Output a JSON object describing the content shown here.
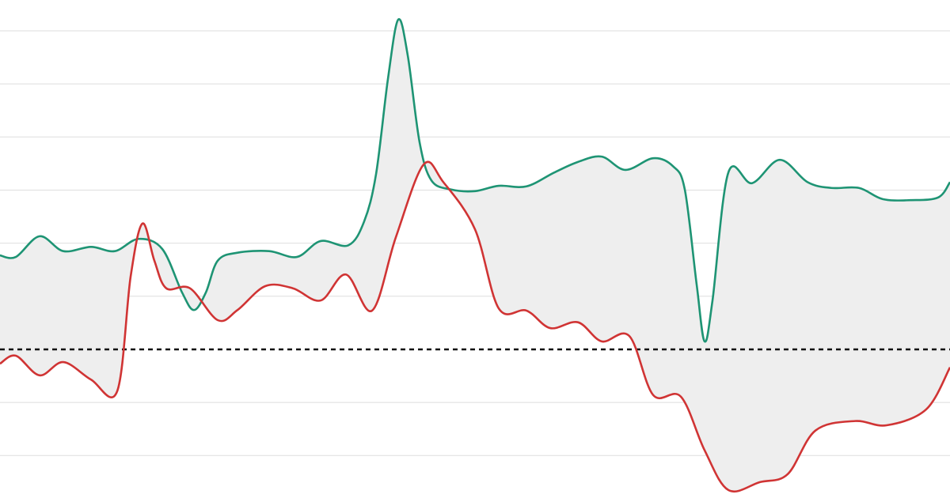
{
  "chart_data": {
    "type": "line",
    "xlim": [
      0,
      120
    ],
    "ylim": [
      -2.8,
      6.58
    ],
    "yticks": [
      -2,
      -1,
      1,
      2,
      3,
      4,
      5,
      6
    ],
    "grid": true,
    "hline": 0,
    "fill_between": true,
    "fill_color": "#eeeeee",
    "series": [
      {
        "color": "#1e9474",
        "x": [
          0,
          2,
          5,
          8,
          11.5,
          14.5,
          17.5,
          20.5,
          23,
          24.5,
          26,
          27.5,
          30,
          34,
          37.5,
          40.5,
          44,
          46,
          47.5,
          49,
          50.3,
          51.5,
          53,
          54.5,
          57,
          60,
          63,
          66.5,
          70,
          73,
          76,
          79,
          82.5,
          85,
          86.5,
          88,
          89,
          90,
          92,
          95,
          98.5,
          102,
          105,
          108.5,
          111.5,
          115,
          118.5,
          120
        ],
        "values": [
          1.77,
          1.74,
          2.13,
          1.85,
          1.93,
          1.85,
          2.08,
          1.89,
          1.07,
          0.74,
          1.07,
          1.67,
          1.82,
          1.85,
          1.74,
          2.04,
          1.96,
          2.41,
          3.3,
          5.09,
          6.21,
          5.54,
          3.9,
          3.18,
          3.01,
          2.98,
          3.08,
          3.07,
          3.33,
          3.53,
          3.63,
          3.38,
          3.6,
          3.45,
          3.01,
          1.22,
          0.15,
          0.92,
          3.33,
          3.13,
          3.57,
          3.15,
          3.04,
          3.04,
          2.83,
          2.81,
          2.86,
          3.15
        ]
      },
      {
        "color": "#d03434",
        "x": [
          0,
          2,
          5,
          8,
          11.5,
          14.8,
          16.5,
          18,
          19.5,
          21,
          24,
          27.5,
          30,
          33.5,
          37,
          40.5,
          43.7,
          47,
          50,
          53.5,
          56,
          60,
          63,
          66.5,
          69.5,
          73,
          76,
          79.5,
          82.5,
          86,
          89,
          92,
          96,
          99.5,
          103,
          108,
          112,
          117,
          120
        ],
        "values": [
          -0.27,
          -0.12,
          -0.49,
          -0.24,
          -0.57,
          -0.79,
          1.37,
          2.37,
          1.67,
          1.15,
          1.15,
          0.55,
          0.74,
          1.19,
          1.15,
          0.92,
          1.41,
          0.73,
          2.11,
          3.48,
          3.15,
          2.26,
          0.77,
          0.73,
          0.4,
          0.51,
          0.15,
          0.25,
          -0.86,
          -0.89,
          -1.9,
          -2.65,
          -2.5,
          -2.35,
          -1.53,
          -1.35,
          -1.43,
          -1.13,
          -0.34
        ]
      }
    ]
  }
}
